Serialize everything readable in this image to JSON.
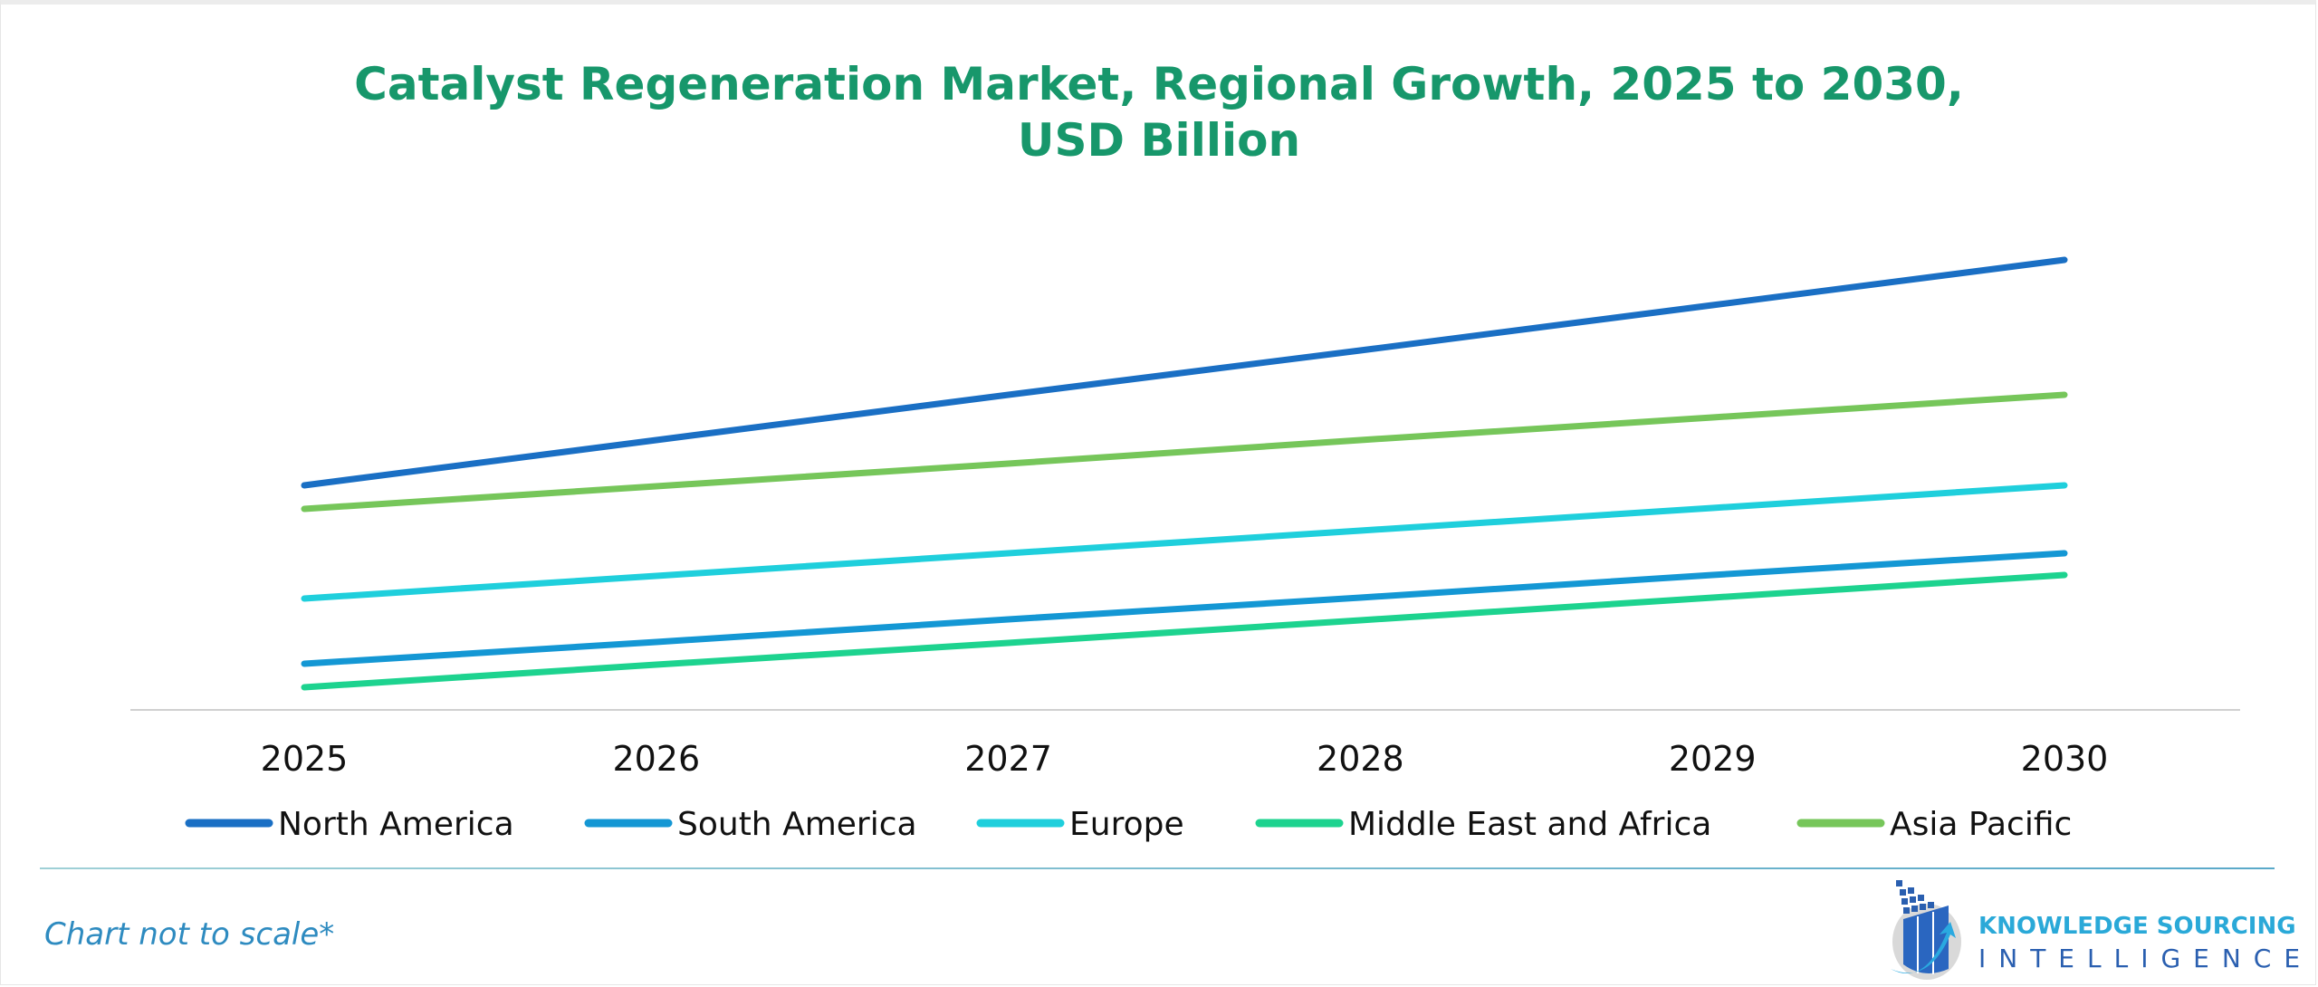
{
  "chart_data": {
    "type": "line",
    "title": "Catalyst Regeneration Market, Regional Growth, 2025 to 2030, USD Billion",
    "title_line1": "Catalyst Regeneration Market, Regional Growth, 2025 to 2030,",
    "title_line2": "USD Billion",
    "xlabel": "",
    "ylabel": "",
    "categories": [
      "2025",
      "2026",
      "2027",
      "2028",
      "2029",
      "2030"
    ],
    "ylim": [
      0,
      5.5
    ],
    "grid": false,
    "legend_position": "bottom",
    "series": [
      {
        "name": "North America",
        "color": "#1a6fc4",
        "values": [
          2.48,
          2.98,
          3.48,
          3.97,
          4.47,
          4.97
        ]
      },
      {
        "name": "South America",
        "color": "#1497d4",
        "values": [
          0.51,
          0.75,
          1.0,
          1.24,
          1.49,
          1.73
        ]
      },
      {
        "name": "Europe",
        "color": "#1fcfdc",
        "values": [
          1.23,
          1.48,
          1.73,
          1.98,
          2.23,
          2.48
        ]
      },
      {
        "name": "Middle East and Africa",
        "color": "#1dd38f",
        "values": [
          0.25,
          0.5,
          0.74,
          0.99,
          1.24,
          1.49
        ]
      },
      {
        "name": "Asia Pacific",
        "color": "#76c65a",
        "values": [
          2.22,
          2.47,
          2.72,
          2.98,
          3.23,
          3.48
        ]
      }
    ],
    "note": "Chart not to scale*"
  },
  "title_color": "#17976b",
  "logo": {
    "line1": "KNOWLEDGE SOURCING",
    "line2": "INTELLIGENCE"
  }
}
